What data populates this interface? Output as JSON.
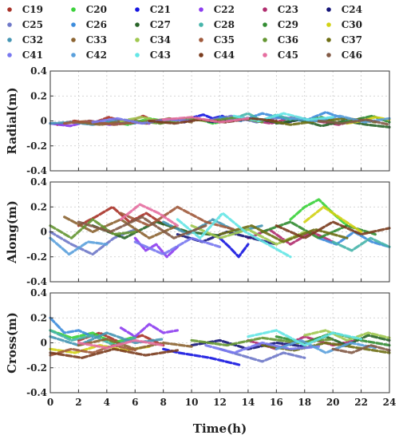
{
  "chart_data": {
    "type": "line",
    "xlabel": "Time(h)",
    "xlim": [
      0,
      24
    ],
    "xticks": [
      "0",
      "2",
      "4",
      "6",
      "8",
      "10",
      "12",
      "14",
      "16",
      "18",
      "20",
      "22",
      "24"
    ],
    "ylim": [
      -0.4,
      0.4
    ],
    "yticks": [
      "-0.4",
      "-0.2",
      "0",
      "0.2",
      "0.4"
    ],
    "grid": true,
    "legend_position": "top",
    "series": [
      {
        "name": "C19",
        "color": "#a83228"
      },
      {
        "name": "C20",
        "color": "#3ad13a"
      },
      {
        "name": "C21",
        "color": "#1414e0"
      },
      {
        "name": "C22",
        "color": "#8c3cf0"
      },
      {
        "name": "C23",
        "color": "#b02c6e"
      },
      {
        "name": "C24",
        "color": "#141478"
      },
      {
        "name": "C25",
        "color": "#6e78c8"
      },
      {
        "name": "C26",
        "color": "#3c8cdc"
      },
      {
        "name": "C27",
        "color": "#286428"
      },
      {
        "name": "C28",
        "color": "#46b4aa"
      },
      {
        "name": "C29",
        "color": "#328c32"
      },
      {
        "name": "C30",
        "color": "#d2d214"
      },
      {
        "name": "C32",
        "color": "#4696b4"
      },
      {
        "name": "C33",
        "color": "#8c6432"
      },
      {
        "name": "C34",
        "color": "#a0c850"
      },
      {
        "name": "C35",
        "color": "#a05a3c"
      },
      {
        "name": "C36",
        "color": "#649632"
      },
      {
        "name": "C37",
        "color": "#6e6e14"
      },
      {
        "name": "C41",
        "color": "#7878f0"
      },
      {
        "name": "C42",
        "color": "#5aa0dc"
      },
      {
        "name": "C43",
        "color": "#64e6e6"
      },
      {
        "name": "C44",
        "color": "#7a3c1e"
      },
      {
        "name": "C45",
        "color": "#e66ea0"
      },
      {
        "name": "C46",
        "color": "#825a46"
      }
    ],
    "panels": [
      {
        "ylabel": "Radial(m)",
        "tracks": [
          {
            "s": 0,
            "t0": 0.5,
            "t1": 9,
            "v": [
              -0.03,
              0.0,
              -0.02,
              0.03,
              -0.01,
              0.04,
              -0.02,
              0.01
            ]
          },
          {
            "s": 1,
            "t0": 4,
            "t1": 13,
            "v": [
              0.0,
              -0.03,
              0.02,
              -0.01,
              0.03,
              -0.02,
              0.01
            ]
          },
          {
            "s": 2,
            "t0": 9.5,
            "t1": 13.5,
            "v": [
              -0.01,
              0.03,
              0.05,
              0.02,
              0.04,
              0.0,
              0.03
            ]
          },
          {
            "s": 3,
            "t0": 0,
            "t1": 7,
            "v": [
              -0.02,
              -0.04,
              0.0,
              -0.03,
              -0.01,
              -0.02
            ]
          },
          {
            "s": 4,
            "t0": 14,
            "t1": 22,
            "v": [
              0.01,
              -0.02,
              0.03,
              0.0,
              -0.03,
              0.02
            ]
          },
          {
            "s": 5,
            "t0": 10,
            "t1": 18,
            "v": [
              0.02,
              -0.01,
              0.03,
              0.01,
              -0.02,
              0.02
            ]
          },
          {
            "s": 6,
            "t0": 11,
            "t1": 20,
            "v": [
              0.0,
              0.04,
              -0.01,
              0.03,
              0.0,
              0.02
            ]
          },
          {
            "s": 7,
            "t0": 12,
            "t1": 21,
            "v": [
              0.03,
              0.0,
              0.06,
              0.02,
              0.0,
              0.07,
              0.01
            ]
          },
          {
            "s": 8,
            "t0": 16,
            "t1": 24,
            "v": [
              -0.02,
              0.01,
              -0.04,
              0.0,
              -0.03,
              -0.05
            ]
          },
          {
            "s": 9,
            "t0": 13,
            "t1": 17,
            "v": [
              0.02,
              0.06,
              0.0,
              0.05,
              0.01
            ]
          },
          {
            "s": 10,
            "t0": 18,
            "t1": 24,
            "v": [
              0.0,
              0.03,
              -0.02,
              0.01,
              0.04,
              -0.01
            ]
          },
          {
            "s": 11,
            "t0": 21,
            "t1": 24,
            "v": [
              -0.02,
              0.0,
              0.03,
              0.01
            ]
          },
          {
            "s": 12,
            "t0": 0,
            "t1": 6,
            "v": [
              -0.02,
              -0.01,
              -0.03,
              0.0,
              -0.02
            ]
          },
          {
            "s": 13,
            "t0": 2,
            "t1": 10,
            "v": [
              -0.01,
              -0.03,
              0.0,
              -0.02,
              0.02,
              -0.01
            ]
          },
          {
            "s": 14,
            "t0": 5,
            "t1": 11,
            "v": [
              0.0,
              0.03,
              -0.01,
              0.02,
              0.0
            ]
          },
          {
            "s": 15,
            "t0": 1,
            "t1": 8,
            "v": [
              -0.02,
              0.0,
              -0.03,
              -0.01,
              0.01
            ]
          },
          {
            "s": 16,
            "t0": 6,
            "t1": 15,
            "v": [
              0.0,
              -0.02,
              0.02,
              0.0,
              0.03,
              -0.01
            ]
          },
          {
            "s": 17,
            "t0": 15,
            "t1": 23,
            "v": [
              0.01,
              -0.03,
              0.0,
              0.02,
              -0.01
            ]
          },
          {
            "s": 18,
            "t0": 3,
            "t1": 10,
            "v": [
              -0.01,
              0.02,
              -0.02,
              0.01,
              0.0
            ]
          },
          {
            "s": 19,
            "t0": 17,
            "t1": 24,
            "v": [
              0.02,
              0.0,
              0.04,
              -0.01,
              0.02
            ]
          },
          {
            "s": 20,
            "t0": 13,
            "t1": 20,
            "v": [
              0.04,
              0.0,
              0.06,
              0.01,
              0.03
            ]
          },
          {
            "s": 21,
            "t0": 7,
            "t1": 16,
            "v": [
              0.0,
              -0.02,
              0.01,
              -0.01,
              0.02,
              0.0
            ]
          },
          {
            "s": 22,
            "t0": 8,
            "t1": 14,
            "v": [
              0.01,
              0.03,
              -0.01,
              0.02
            ]
          },
          {
            "s": 23,
            "t0": 19,
            "t1": 24,
            "v": [
              0.0,
              -0.02,
              0.01,
              -0.03
            ]
          }
        ]
      },
      {
        "ylabel": "Along(m)",
        "tracks": [
          {
            "s": 0,
            "t0": 2,
            "t1": 8,
            "v": [
              0.05,
              0.12,
              0.2,
              0.08,
              0.15,
              0.06
            ]
          },
          {
            "s": 1,
            "t0": 17,
            "t1": 21,
            "v": [
              0.1,
              0.2,
              0.26,
              0.15,
              0.05
            ]
          },
          {
            "s": 2,
            "t0": 12,
            "t1": 14,
            "v": [
              -0.05,
              -0.12,
              -0.2,
              -0.1
            ]
          },
          {
            "s": 3,
            "t0": 6,
            "t1": 9,
            "v": [
              -0.05,
              -0.15,
              -0.1,
              -0.2,
              -0.12
            ]
          },
          {
            "s": 4,
            "t0": 14,
            "t1": 20,
            "v": [
              -0.05,
              0.02,
              -0.1,
              0.0,
              -0.08
            ]
          },
          {
            "s": 5,
            "t0": 9,
            "t1": 16,
            "v": [
              -0.02,
              -0.08,
              0.0,
              -0.05,
              -0.1
            ]
          },
          {
            "s": 6,
            "t0": 0,
            "t1": 6,
            "v": [
              0.0,
              -0.1,
              -0.18,
              -0.05,
              0.02
            ]
          },
          {
            "s": 7,
            "t0": 19,
            "t1": 24,
            "v": [
              -0.05,
              -0.1,
              0.0,
              -0.08,
              -0.12
            ]
          },
          {
            "s": 8,
            "t0": 3,
            "t1": 12,
            "v": [
              0.05,
              -0.05,
              0.08,
              0.0,
              -0.03
            ]
          },
          {
            "s": 9,
            "t0": 20,
            "t1": 24,
            "v": [
              -0.08,
              -0.15,
              -0.05,
              -0.12
            ]
          },
          {
            "s": 10,
            "t0": 15,
            "t1": 23,
            "v": [
              0.0,
              0.08,
              -0.05,
              0.05,
              -0.02
            ]
          },
          {
            "s": 11,
            "t0": 18,
            "t1": 22,
            "v": [
              0.08,
              0.2,
              0.1,
              0.0
            ]
          },
          {
            "s": 12,
            "t0": 8,
            "t1": 15,
            "v": [
              0.08,
              -0.02,
              0.1,
              0.0,
              0.05
            ]
          },
          {
            "s": 13,
            "t0": 1,
            "t1": 9,
            "v": [
              0.12,
              0.0,
              0.1,
              -0.05,
              0.05
            ]
          },
          {
            "s": 14,
            "t0": 10,
            "t1": 18,
            "v": [
              0.05,
              -0.05,
              0.02,
              -0.1,
              0.0
            ]
          },
          {
            "s": 15,
            "t0": 5,
            "t1": 13,
            "v": [
              0.15,
              0.05,
              0.2,
              0.08,
              0.02
            ]
          },
          {
            "s": 16,
            "t0": 0,
            "t1": 6,
            "v": [
              0.05,
              -0.05,
              0.1,
              -0.02,
              0.0
            ]
          },
          {
            "s": 17,
            "t0": 12,
            "t1": 21,
            "v": [
              -0.02,
              0.05,
              -0.08,
              0.02,
              -0.05
            ]
          },
          {
            "s": 18,
            "t0": 6,
            "t1": 12,
            "v": [
              -0.08,
              -0.18,
              -0.05,
              -0.12
            ]
          },
          {
            "s": 19,
            "t0": 0,
            "t1": 4,
            "v": [
              -0.05,
              -0.18,
              -0.08,
              -0.1
            ]
          },
          {
            "s": 20,
            "t0": 9,
            "t1": 17,
            "v": [
              0.1,
              -0.05,
              0.15,
              0.0,
              -0.1,
              -0.2
            ]
          },
          {
            "s": 21,
            "t0": 16,
            "t1": 24,
            "v": [
              0.05,
              -0.05,
              0.08,
              -0.02,
              0.03
            ]
          },
          {
            "s": 22,
            "t0": 5,
            "t1": 9,
            "v": [
              0.1,
              0.22,
              0.15,
              0.05
            ]
          },
          {
            "s": 23,
            "t0": 2,
            "t1": 11,
            "v": [
              0.08,
              0.0,
              0.12,
              -0.05,
              0.05
            ]
          }
        ]
      },
      {
        "ylabel": "Cross(m)",
        "tracks": [
          {
            "s": 0,
            "t0": 2,
            "t1": 8,
            "v": [
              0.02,
              0.08,
              0.0,
              0.06,
              -0.02
            ]
          },
          {
            "s": 1,
            "t0": 0,
            "t1": 6,
            "v": [
              0.1,
              0.04,
              0.08,
              0.0,
              0.05
            ]
          },
          {
            "s": 2,
            "t0": 8,
            "t1": 13.5,
            "v": [
              -0.05,
              -0.08,
              -0.1,
              -0.12,
              -0.15,
              -0.18
            ]
          },
          {
            "s": 3,
            "t0": 5,
            "t1": 9,
            "v": [
              0.12,
              0.05,
              0.15,
              0.08,
              0.1
            ]
          },
          {
            "s": 4,
            "t0": 14,
            "t1": 22,
            "v": [
              0.02,
              -0.05,
              0.05,
              -0.02,
              0.03
            ]
          },
          {
            "s": 5,
            "t0": 10,
            "t1": 18,
            "v": [
              -0.02,
              0.02,
              -0.05,
              0.0,
              -0.03
            ]
          },
          {
            "s": 6,
            "t0": 12,
            "t1": 18,
            "v": [
              -0.05,
              -0.1,
              -0.15,
              -0.08,
              -0.12
            ]
          },
          {
            "s": 7,
            "t0": 0,
            "t1": 3,
            "v": [
              0.2,
              0.08,
              0.1,
              0.05
            ]
          },
          {
            "s": 8,
            "t0": 18,
            "t1": 24,
            "v": [
              0.0,
              0.05,
              -0.02,
              0.06,
              0.02
            ]
          },
          {
            "s": 9,
            "t0": 0,
            "t1": 6,
            "v": [
              0.1,
              0.02,
              0.06,
              -0.02,
              0.04
            ]
          },
          {
            "s": 10,
            "t0": 16,
            "t1": 24,
            "v": [
              0.05,
              0.0,
              0.08,
              0.02,
              -0.02
            ]
          },
          {
            "s": 11,
            "t0": 0,
            "t1": 7,
            "v": [
              -0.05,
              -0.08,
              -0.02,
              -0.06,
              -0.03
            ]
          },
          {
            "s": 12,
            "t0": 0,
            "t1": 8,
            "v": [
              0.05,
              -0.02,
              0.08,
              0.0,
              0.03
            ]
          },
          {
            "s": 13,
            "t0": 2,
            "t1": 10,
            "v": [
              -0.02,
              0.03,
              -0.05,
              0.0,
              -0.03
            ]
          },
          {
            "s": 14,
            "t0": 18,
            "t1": 24,
            "v": [
              0.06,
              0.1,
              0.02,
              0.08,
              0.04
            ]
          },
          {
            "s": 15,
            "t0": 0,
            "t1": 6,
            "v": [
              -0.1,
              -0.05,
              -0.08,
              -0.02,
              -0.06
            ]
          },
          {
            "s": 16,
            "t0": 10,
            "t1": 20,
            "v": [
              0.02,
              -0.02,
              0.04,
              0.0,
              0.03
            ]
          },
          {
            "s": 17,
            "t0": 15,
            "t1": 24,
            "v": [
              -0.02,
              -0.06,
              0.0,
              -0.04,
              -0.08
            ]
          },
          {
            "s": 18,
            "t0": 11,
            "t1": 19,
            "v": [
              -0.02,
              -0.08,
              0.0,
              -0.05,
              -0.03
            ]
          },
          {
            "s": 19,
            "t0": 16,
            "t1": 23,
            "v": [
              -0.05,
              0.02,
              -0.08,
              0.0,
              -0.04
            ]
          },
          {
            "s": 20,
            "t0": 14,
            "t1": 22,
            "v": [
              0.05,
              0.1,
              -0.02,
              0.08,
              0.03
            ]
          },
          {
            "s": 21,
            "t0": 0,
            "t1": 9,
            "v": [
              -0.08,
              -0.12,
              -0.05,
              -0.1,
              -0.06
            ]
          },
          {
            "s": 22,
            "t0": 2,
            "t1": 8,
            "v": [
              0.0,
              -0.04,
              0.02,
              -0.02
            ]
          },
          {
            "s": 23,
            "t0": 20,
            "t1": 24,
            "v": [
              -0.05,
              -0.08,
              -0.02,
              -0.06
            ]
          }
        ]
      }
    ]
  }
}
